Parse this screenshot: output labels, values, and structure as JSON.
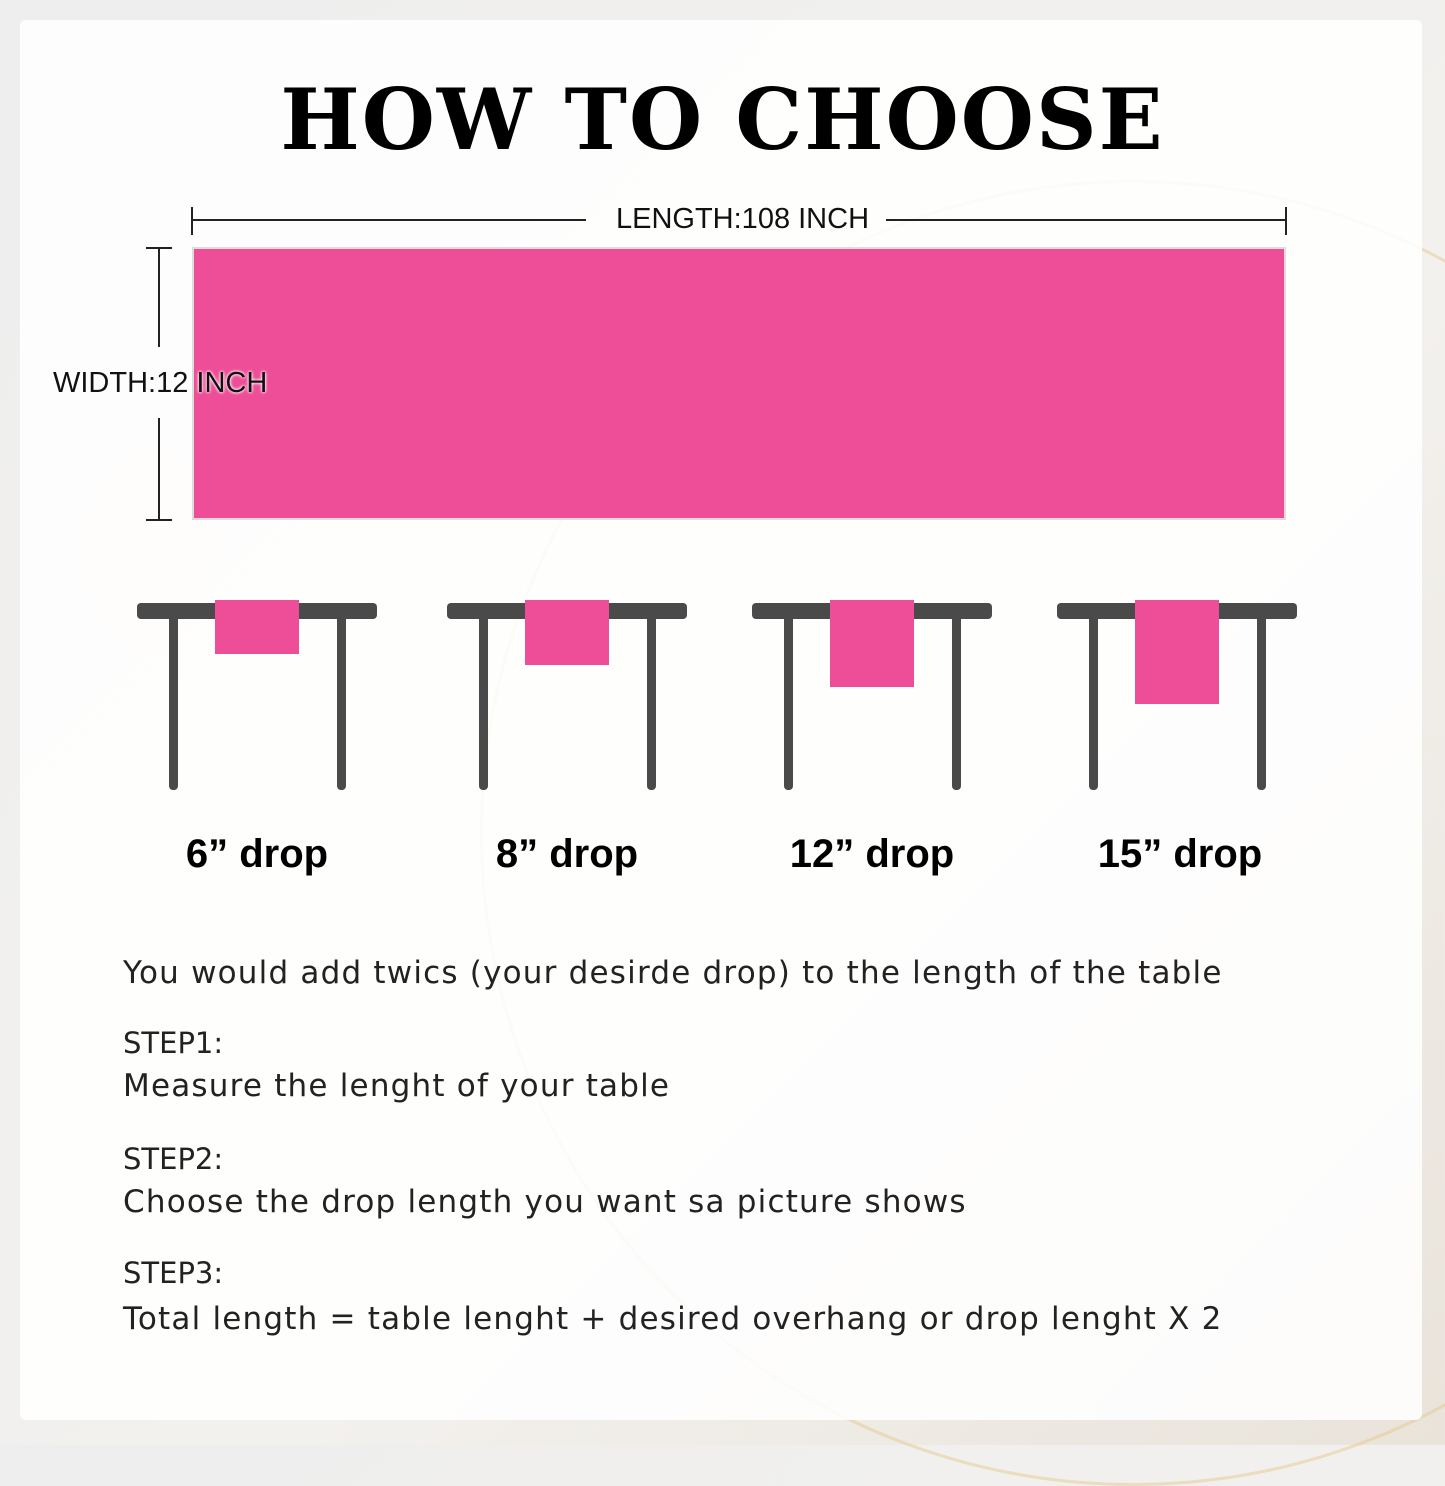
{
  "title": "HOW TO CHOOSE",
  "length_label": "LENGTH:108 INCH",
  "width_label": "WIDTH:12 INCH",
  "colors": {
    "runner": "#ee4d98",
    "table": "#4a4a4a"
  },
  "drops": [
    {
      "label": "6”  drop",
      "inches": 6
    },
    {
      "label": "8”  drop",
      "inches": 8
    },
    {
      "label": "12”  drop",
      "inches": 12
    },
    {
      "label": "15”  drop",
      "inches": 15
    }
  ],
  "intro": "You would add twics (your desirde drop) to the length of the table",
  "steps": [
    {
      "heading": "STEP1:",
      "text": "Measure the lenght of your table"
    },
    {
      "heading": "STEP2:",
      "text": "Choose the drop length you want sa picture shows"
    },
    {
      "heading": "STEP3:",
      "text": "Total length = table lenght + desired overhang or drop lenght X 2"
    }
  ]
}
